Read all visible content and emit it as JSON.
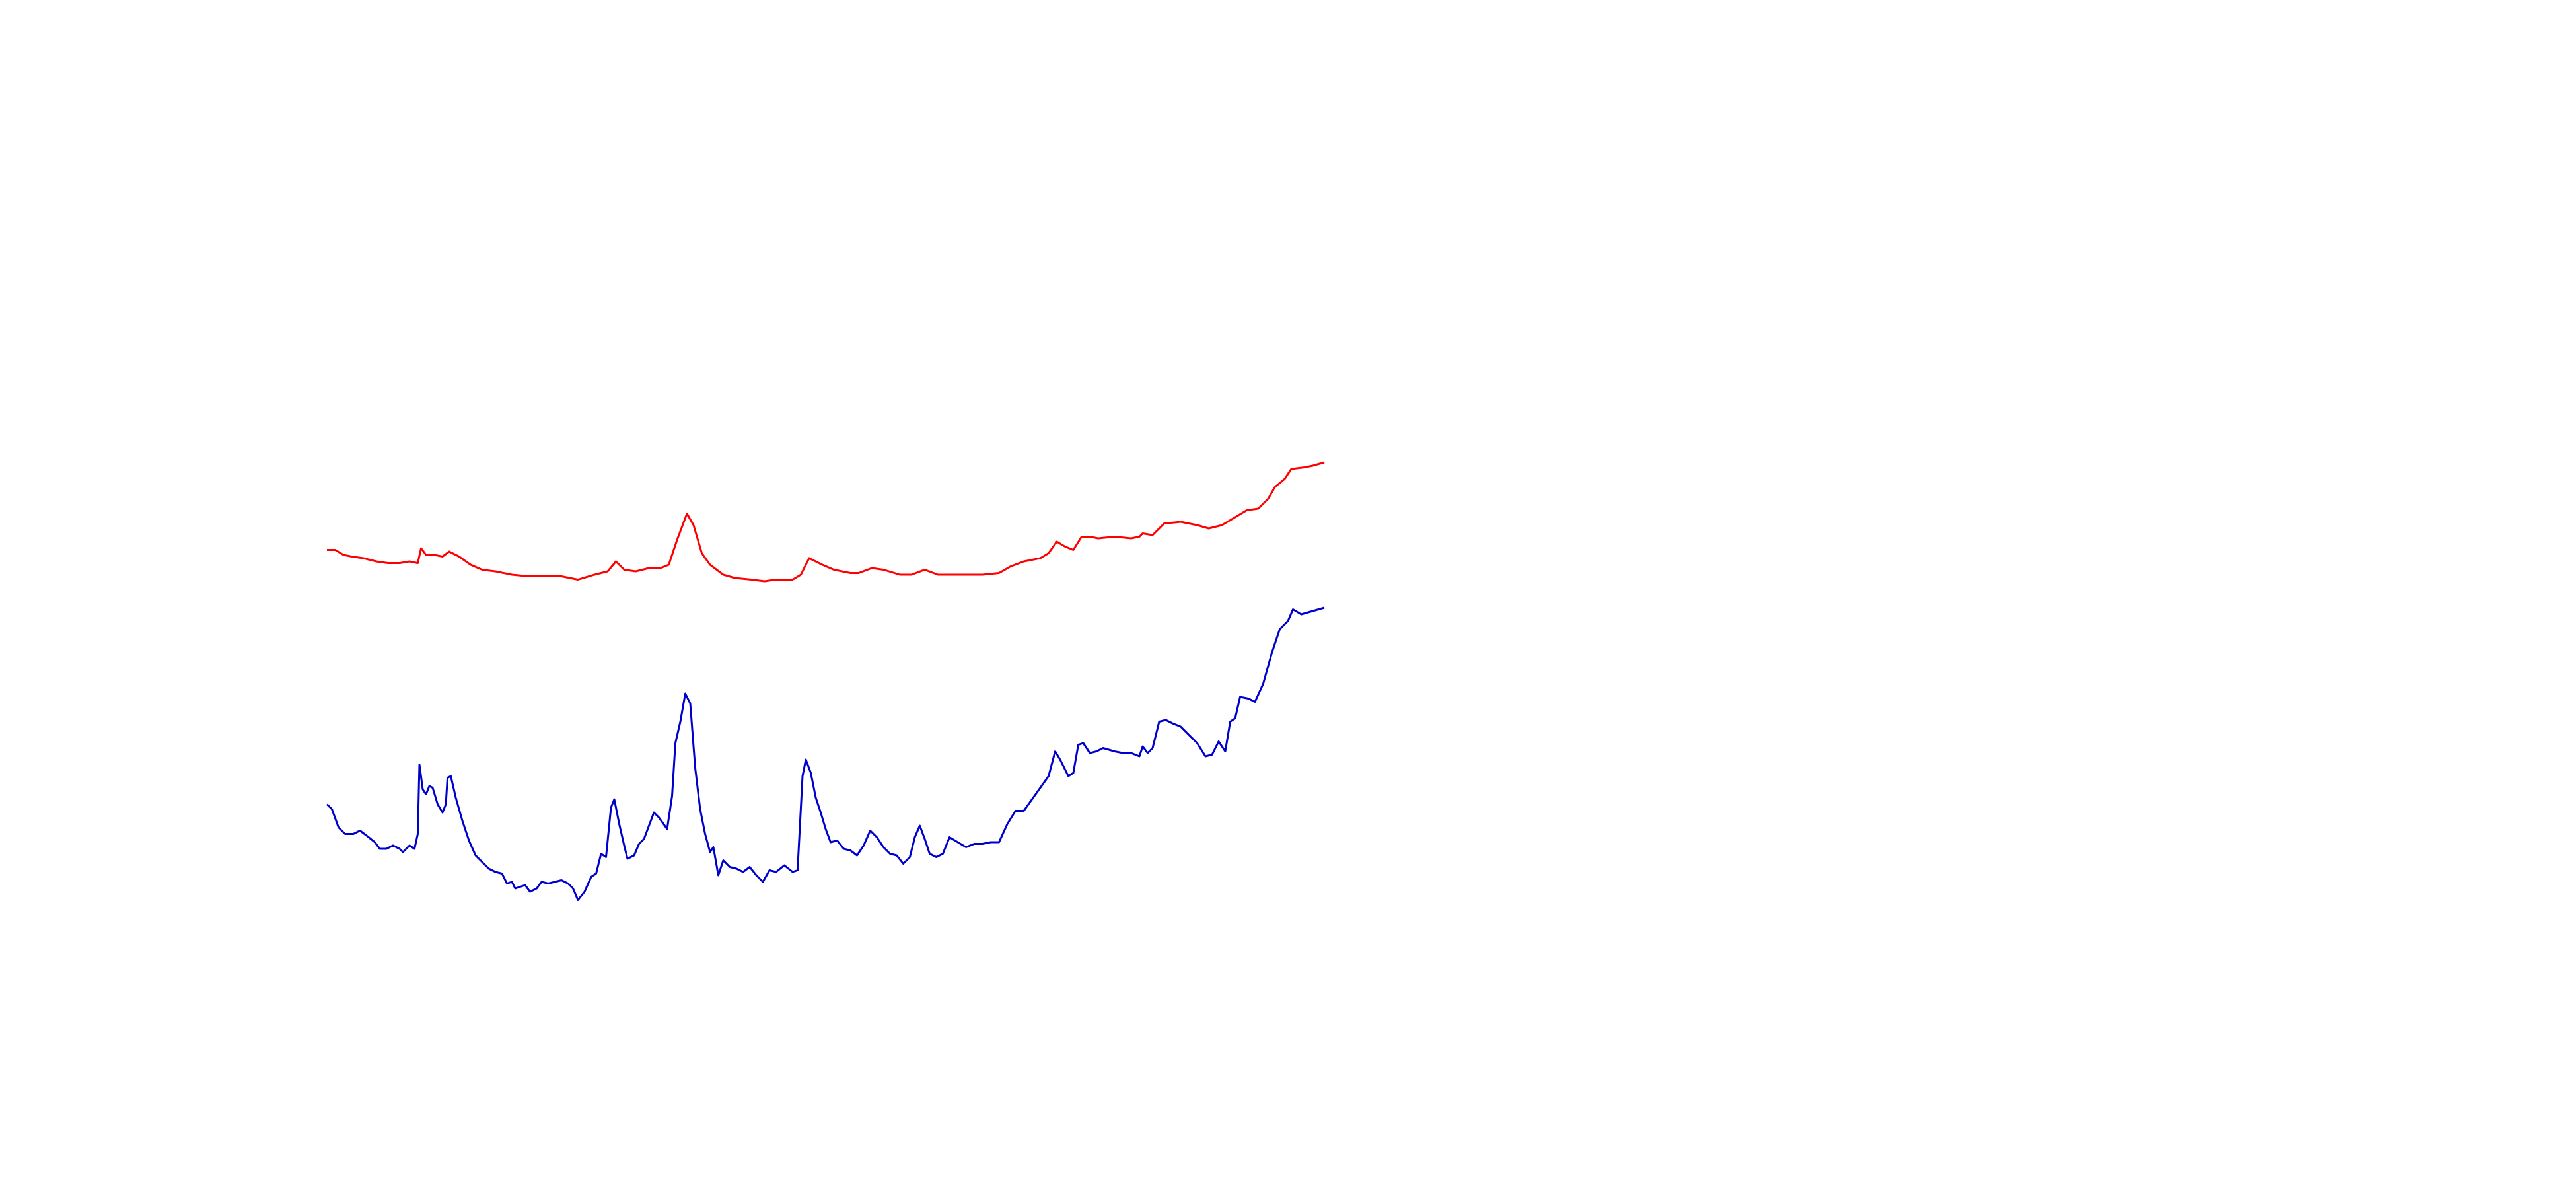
{
  "chart_data": {
    "type": "line",
    "xlim": [
      0,
      1560
    ],
    "ylim": [
      720,
      0
    ],
    "series": [
      {
        "color": "#ff0000",
        "x": [
          198,
          203,
          208,
          213,
          220,
          228,
          235,
          242,
          248,
          253,
          255,
          258,
          263,
          268,
          272,
          278,
          285,
          292,
          300,
          310,
          320,
          330,
          340,
          350,
          360,
          368,
          373,
          378,
          385,
          393,
          400,
          405,
          410,
          416,
          420,
          425,
          430,
          438,
          445,
          455,
          463,
          470,
          480,
          485,
          490,
          498,
          505,
          515,
          520,
          528,
          535,
          545,
          552,
          560,
          568,
          575,
          585,
          595,
          605,
          612,
          620,
          630,
          635,
          640,
          645,
          650,
          655,
          660,
          665,
          675,
          685,
          690,
          692,
          698,
          705,
          715,
          725,
          732,
          740,
          745,
          750,
          755,
          762,
          768,
          772,
          778,
          782,
          790,
          795,
          802
        ],
        "values": [
          333,
          333,
          336,
          337,
          338,
          340,
          341,
          341,
          340,
          341,
          332,
          336,
          336,
          337,
          334,
          337,
          342,
          345,
          346,
          348,
          349,
          349,
          349,
          351,
          348,
          346,
          340,
          345,
          346,
          344,
          344,
          342,
          327,
          311,
          318,
          335,
          342,
          348,
          350,
          351,
          352,
          351,
          351,
          348,
          338,
          342,
          345,
          347,
          347,
          344,
          345,
          348,
          348,
          345,
          348,
          348,
          348,
          348,
          347,
          343,
          340,
          338,
          335,
          328,
          331,
          333,
          325,
          325,
          326,
          325,
          326,
          325,
          323,
          324,
          317,
          316,
          318,
          320,
          318,
          315,
          312,
          309,
          308,
          302,
          295,
          290,
          284,
          283,
          282,
          280
        ]
      },
      {
        "color": "#0000cc",
        "x": [
          198,
          201,
          205,
          209,
          214,
          218,
          222,
          227,
          230,
          234,
          238,
          242,
          244,
          248,
          251,
          253,
          254,
          256,
          258,
          260,
          262,
          265,
          268,
          270,
          271,
          273,
          276,
          280,
          284,
          288,
          292,
          296,
          300,
          304,
          307,
          310,
          312,
          315,
          318,
          321,
          325,
          328,
          332,
          336,
          340,
          344,
          347,
          350,
          354,
          358,
          361,
          364,
          367,
          370,
          372,
          375,
          378,
          380,
          384,
          387,
          390,
          393,
          396,
          399,
          404,
          407,
          409,
          412,
          415,
          418,
          421,
          424,
          427,
          430,
          432,
          435,
          438,
          442,
          446,
          450,
          454,
          458,
          462,
          466,
          470,
          475,
          480,
          483,
          486,
          488,
          491,
          494,
          497,
          500,
          503,
          507,
          511,
          515,
          519,
          523,
          527,
          531,
          535,
          539,
          543,
          547,
          551,
          554,
          557,
          560,
          563,
          567,
          571,
          575,
          580,
          585,
          590,
          595,
          600,
          605,
          610,
          615,
          620,
          625,
          630,
          635,
          639,
          642,
          647,
          650,
          653,
          656,
          660,
          664,
          668,
          675,
          680,
          685,
          690,
          692,
          695,
          698,
          702,
          706,
          710,
          715,
          720,
          725,
          730,
          734,
          738,
          742,
          745,
          748,
          751,
          756,
          760,
          765,
          770,
          775,
          780,
          783,
          788,
          795,
          802
        ],
        "values": [
          487,
          490,
          501,
          505,
          505,
          503,
          506,
          510,
          514,
          514,
          512,
          514,
          516,
          512,
          514,
          505,
          463,
          478,
          481,
          476,
          477,
          487,
          492,
          487,
          471,
          470,
          483,
          497,
          509,
          518,
          522,
          526,
          528,
          529,
          535,
          534,
          538,
          537,
          536,
          540,
          538,
          534,
          535,
          534,
          533,
          535,
          538,
          545,
          540,
          531,
          529,
          517,
          519,
          489,
          484,
          499,
          512,
          520,
          518,
          511,
          508,
          500,
          492,
          495,
          502,
          482,
          450,
          437,
          420,
          426,
          465,
          490,
          505,
          516,
          513,
          530,
          521,
          525,
          526,
          528,
          525,
          530,
          534,
          527,
          528,
          524,
          528,
          527,
          470,
          460,
          468,
          483,
          492,
          502,
          510,
          509,
          514,
          515,
          518,
          512,
          503,
          507,
          513,
          517,
          518,
          523,
          519,
          507,
          500,
          508,
          517,
          519,
          517,
          507,
          510,
          513,
          511,
          511,
          510,
          510,
          499,
          491,
          491,
          484,
          477,
          470,
          455,
          460,
          470,
          468,
          451,
          450,
          456,
          455,
          453,
          455,
          456,
          456,
          458,
          452,
          456,
          453,
          437,
          436,
          438,
          440,
          445,
          450,
          458,
          457,
          449,
          455,
          437,
          435,
          422,
          423,
          425,
          414,
          396,
          381,
          376,
          369,
          372,
          370,
          368
        ]
      }
    ]
  }
}
